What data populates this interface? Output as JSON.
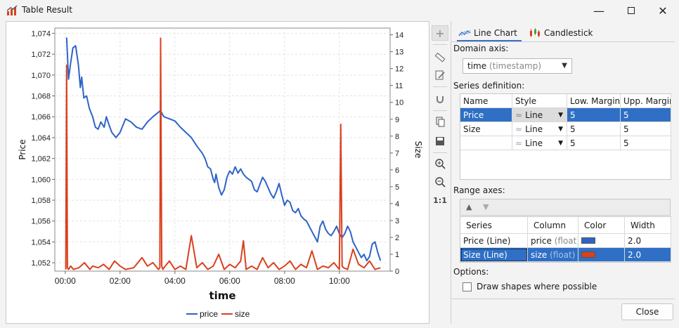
{
  "window": {
    "title": "Table Result",
    "minimize_icon": "minimize-icon",
    "maximize_icon": "maximize-icon",
    "close_icon": "close-icon"
  },
  "tabs": [
    {
      "label": "Line Chart",
      "icon": "line-chart-icon",
      "active": true
    },
    {
      "label": "Candlestick",
      "icon": "candlestick-icon",
      "active": false
    }
  ],
  "domain_axis": {
    "label": "Domain axis:",
    "value": "time",
    "type": "(timestamp)"
  },
  "series_definition": {
    "label": "Series definition:",
    "columns": [
      "Name",
      "Style",
      "Low. Margin",
      "Upp. Margin"
    ],
    "rows": [
      {
        "name": "Price",
        "style": "Line",
        "low": "5",
        "upp": "5",
        "selected": true
      },
      {
        "name": "Size",
        "style": "Line",
        "low": "5",
        "upp": "5",
        "selected": false
      },
      {
        "name": "",
        "style": "Line",
        "low": "5",
        "upp": "5",
        "selected": false
      }
    ]
  },
  "range_axes": {
    "label": "Range axes:",
    "columns": [
      "Series",
      "Column",
      "Color",
      "Width"
    ],
    "rows": [
      {
        "series": "Price (Line)",
        "column": "price",
        "type": "(float)",
        "color": "#2f63c8",
        "width": "2.0",
        "selected": false
      },
      {
        "series": "Size (Line)",
        "column": "size",
        "type": "(float)",
        "color": "#d9401f",
        "width": "2.0",
        "selected": true
      }
    ]
  },
  "options": {
    "label": "Options:",
    "draw_shapes": "Draw shapes where possible",
    "draw_shapes_checked": false
  },
  "close_button": "Close",
  "toolbar_icons": [
    "crosshair-icon",
    "ruler-icon",
    "edit-icon",
    "magnet-icon",
    "copy-icon",
    "save-icon",
    "zoom-in-icon",
    "zoom-out-icon",
    "reset-zoom-icon"
  ],
  "chart_data": {
    "type": "line",
    "xlabel": "time",
    "ylabel_left": "Price",
    "ylabel_right": "Size",
    "x_ticks": [
      "00:00",
      "02:00",
      "04:00",
      "06:00",
      "08:00",
      "10:00"
    ],
    "y_left_ticks": [
      "1,052",
      "1,054",
      "1,056",
      "1,058",
      "1,060",
      "1,062",
      "1,064",
      "1,066",
      "1,068",
      "1,070",
      "1,072",
      "1,074"
    ],
    "y_right_ticks": [
      "0",
      "1",
      "2",
      "3",
      "4",
      "5",
      "6",
      "7",
      "8",
      "9",
      "10",
      "11",
      "12",
      "13",
      "14"
    ],
    "ylim_left": [
      1.0512,
      1.0745
    ],
    "ylim_right": [
      0,
      14.4
    ],
    "xlim": [
      -0.38,
      11.85
    ],
    "grid": true,
    "legend": [
      "price",
      "size"
    ],
    "legend_position": "bottom",
    "series": [
      {
        "name": "price",
        "color": "#2f63c8",
        "axis": "left",
        "x": [
          0.05,
          0.12,
          0.2,
          0.28,
          0.38,
          0.48,
          0.55,
          0.6,
          0.68,
          0.78,
          0.88,
          1.0,
          1.1,
          1.2,
          1.3,
          1.42,
          1.5,
          1.6,
          1.7,
          1.85,
          2.0,
          2.2,
          2.4,
          2.6,
          2.8,
          3.0,
          3.2,
          3.48,
          3.55,
          3.6,
          3.7,
          3.8,
          4.0,
          4.2,
          4.4,
          4.6,
          4.8,
          5.0,
          5.1,
          5.2,
          5.3,
          5.4,
          5.45,
          5.5,
          5.6,
          5.7,
          5.8,
          5.9,
          6.0,
          6.1,
          6.2,
          6.3,
          6.4,
          6.5,
          6.6,
          6.7,
          6.8,
          6.9,
          7.0,
          7.1,
          7.2,
          7.3,
          7.4,
          7.5,
          7.6,
          7.7,
          7.8,
          7.9,
          8.0,
          8.1,
          8.2,
          8.3,
          8.4,
          8.5,
          8.6,
          8.7,
          8.8,
          8.9,
          9.0,
          9.1,
          9.2,
          9.3,
          9.4,
          9.5,
          9.6,
          9.7,
          9.8,
          9.9,
          10.0,
          10.1,
          10.2,
          10.3,
          10.4,
          10.5,
          10.6,
          10.7,
          10.8,
          10.9,
          11.0,
          11.1,
          11.2,
          11.3,
          11.4,
          11.5
        ],
        "y": [
          1.0736,
          1.0696,
          1.0712,
          1.0726,
          1.0728,
          1.071,
          1.0688,
          1.0698,
          1.0678,
          1.068,
          1.0668,
          1.066,
          1.065,
          1.0648,
          1.0655,
          1.065,
          1.066,
          1.0652,
          1.0645,
          1.064,
          1.0645,
          1.0658,
          1.0655,
          1.065,
          1.0648,
          1.0655,
          1.066,
          1.0666,
          1.0662,
          1.066,
          1.0659,
          1.0658,
          1.0656,
          1.065,
          1.0645,
          1.064,
          1.0632,
          1.0625,
          1.062,
          1.0612,
          1.061,
          1.06,
          1.0597,
          1.0605,
          1.0592,
          1.0585,
          1.059,
          1.0602,
          1.0608,
          1.0605,
          1.0612,
          1.0606,
          1.061,
          1.0605,
          1.0602,
          1.06,
          1.0598,
          1.059,
          1.0588,
          1.0595,
          1.0602,
          1.0598,
          1.0592,
          1.0586,
          1.0582,
          1.0588,
          1.0596,
          1.0585,
          1.0575,
          1.058,
          1.0578,
          1.057,
          1.0568,
          1.0572,
          1.0565,
          1.0562,
          1.056,
          1.0555,
          1.055,
          1.0545,
          1.054,
          1.0555,
          1.056,
          1.0552,
          1.0548,
          1.0546,
          1.055,
          1.0555,
          1.0548,
          1.0544,
          1.0548,
          1.0555,
          1.055,
          1.054,
          1.0535,
          1.053,
          1.0525,
          1.0528,
          1.0522,
          1.0526,
          1.0538,
          1.054,
          1.053,
          1.0522
        ]
      },
      {
        "name": "size",
        "color": "#d9401f",
        "axis": "right",
        "x": [
          0.02,
          0.05,
          0.08,
          0.12,
          0.2,
          0.3,
          0.5,
          0.7,
          0.9,
          1.0,
          1.2,
          1.4,
          1.6,
          1.8,
          2.0,
          2.2,
          2.5,
          2.8,
          3.0,
          3.2,
          3.4,
          3.45,
          3.48,
          3.52,
          3.56,
          3.6,
          3.8,
          4.0,
          4.2,
          4.4,
          4.6,
          4.8,
          5.0,
          5.2,
          5.4,
          5.6,
          5.8,
          6.0,
          6.2,
          6.4,
          6.5,
          6.6,
          6.8,
          7.0,
          7.2,
          7.4,
          7.6,
          7.8,
          8.0,
          8.2,
          8.4,
          8.6,
          8.8,
          9.0,
          9.2,
          9.4,
          9.6,
          9.8,
          10.0,
          10.05,
          10.1,
          10.15,
          10.3,
          10.5,
          10.7,
          10.9,
          11.1,
          11.3,
          11.5
        ],
        "y": [
          0.1,
          12.2,
          0.2,
          0.1,
          0.3,
          0.1,
          0.2,
          0.5,
          0.1,
          0.3,
          0.2,
          0.4,
          0.1,
          0.6,
          0.3,
          0.1,
          0.2,
          0.8,
          0.3,
          0.5,
          0.1,
          0.2,
          13.8,
          0.3,
          0.1,
          0.2,
          0.6,
          0.1,
          0.3,
          0.1,
          2.1,
          0.2,
          0.5,
          0.1,
          0.3,
          1.0,
          0.1,
          0.4,
          0.2,
          0.6,
          1.8,
          0.1,
          0.3,
          0.1,
          0.8,
          0.2,
          0.5,
          0.1,
          0.3,
          0.6,
          0.1,
          0.4,
          0.2,
          1.2,
          0.1,
          0.3,
          0.2,
          0.5,
          0.1,
          8.7,
          0.3,
          0.2,
          0.1,
          1.3,
          0.4,
          0.2,
          0.6,
          0.1,
          0.2
        ]
      }
    ]
  }
}
